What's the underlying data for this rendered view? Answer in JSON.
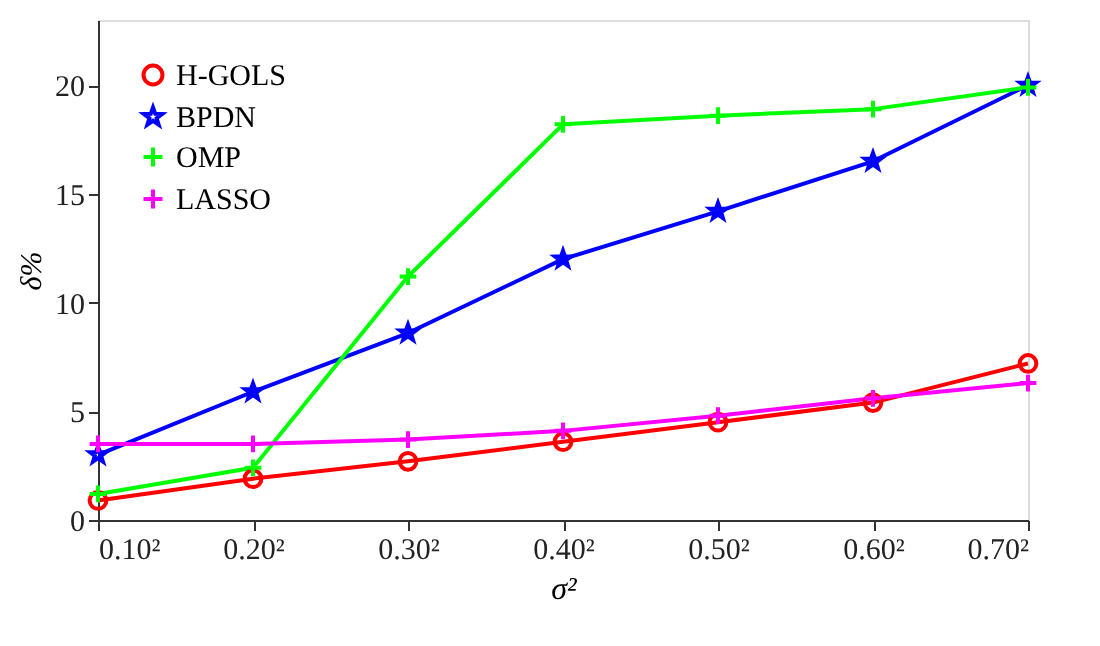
{
  "chart_data": {
    "type": "line",
    "xlabel": "σ²",
    "ylabel": "δ%",
    "categories": [
      "0.10²",
      "0.20²",
      "0.30²",
      "0.40²",
      "0.50²",
      "0.60²",
      "0.70²"
    ],
    "ylim": [
      0,
      23
    ],
    "yticks": [
      0,
      5,
      10,
      15,
      20
    ],
    "grid": false,
    "legend": "top left",
    "line_style": "solid",
    "series": [
      {
        "name": "H-GOLS",
        "color": "#ff0000",
        "marker": "circle",
        "values": [
          0.9,
          1.9,
          2.7,
          3.6,
          4.5,
          5.4,
          7.2
        ]
      },
      {
        "name": "BPDN",
        "color": "#0000ff",
        "marker": "star",
        "values": [
          3.0,
          5.9,
          8.6,
          12.0,
          14.2,
          16.5,
          20.0
        ]
      },
      {
        "name": "OMP",
        "color": "#00ff00",
        "marker": "cross",
        "values": [
          1.2,
          2.4,
          11.2,
          18.2,
          18.6,
          18.9,
          19.9
        ]
      },
      {
        "name": "LASSO",
        "color": "#ff00ff",
        "marker": "cross",
        "values": [
          3.5,
          3.5,
          3.7,
          4.1,
          4.8,
          5.6,
          6.3
        ]
      }
    ]
  }
}
